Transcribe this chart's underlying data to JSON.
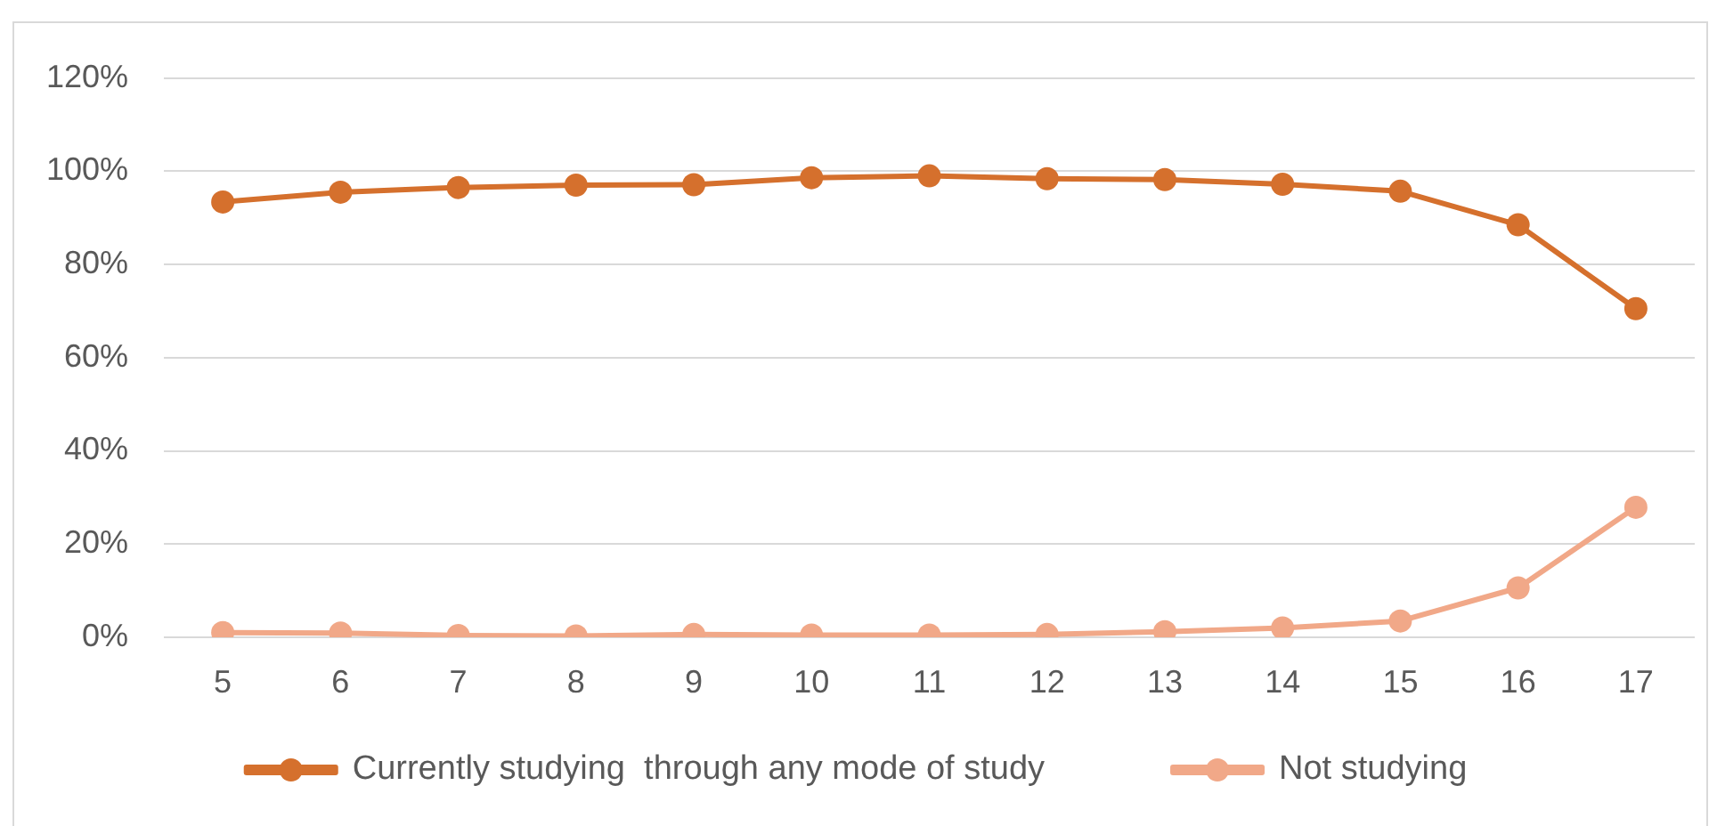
{
  "chart_data": {
    "type": "line",
    "categories": [
      "5",
      "6",
      "7",
      "8",
      "9",
      "10",
      "11",
      "12",
      "13",
      "14",
      "15",
      "16",
      "17"
    ],
    "series": [
      {
        "name": "Currently studying  through any mode of study",
        "color": "#d5702d",
        "values": [
          93.4,
          95.5,
          96.5,
          97.0,
          97.1,
          98.6,
          99.0,
          98.4,
          98.2,
          97.2,
          95.7,
          88.5,
          70.5
        ]
      },
      {
        "name": "Not studying",
        "color": "#f1a888",
        "values": [
          1.0,
          0.9,
          0.4,
          0.3,
          0.6,
          0.5,
          0.5,
          0.6,
          1.2,
          2.0,
          3.5,
          10.6,
          27.9
        ]
      }
    ],
    "ylim": [
      0,
      120
    ],
    "yticks": [
      {
        "value": 0,
        "label": "0%"
      },
      {
        "value": 20,
        "label": "20%"
      },
      {
        "value": 40,
        "label": "40%"
      },
      {
        "value": 60,
        "label": "60%"
      },
      {
        "value": 80,
        "label": "80%"
      },
      {
        "value": 100,
        "label": "100%"
      },
      {
        "value": 120,
        "label": "120%"
      }
    ],
    "grid": "y",
    "legend": "bottom",
    "marker": "circle",
    "line_style": "solid"
  }
}
